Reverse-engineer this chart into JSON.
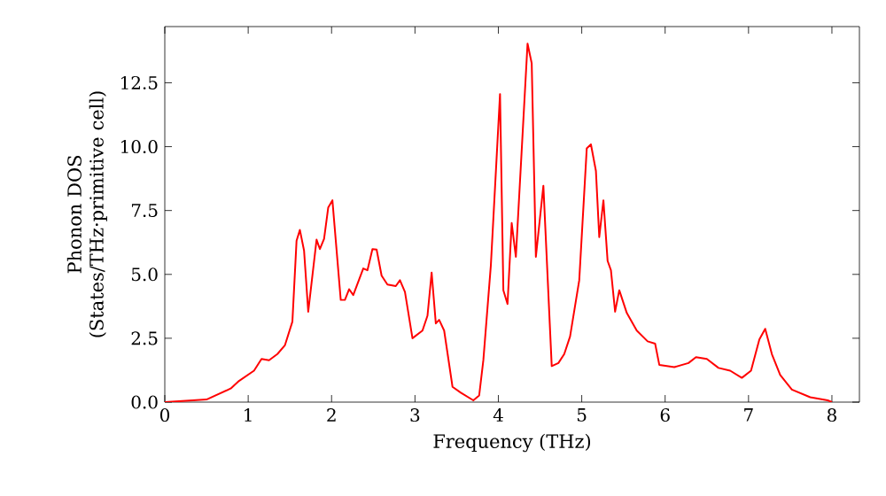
{
  "chart_data": {
    "type": "line",
    "xlabel": "Frequency (THz)",
    "ylabel": "Phonon DOS (States/THz·primitive cell)",
    "xlim": [
      0,
      8.33
    ],
    "ylim": [
      0,
      14.7
    ],
    "xticks": [
      0,
      1,
      2,
      3,
      4,
      5,
      6,
      7,
      8
    ],
    "yticks": [
      {
        "value": 0,
        "label": "0.0"
      },
      {
        "value": 2.5,
        "label": "2.5"
      },
      {
        "value": 5,
        "label": "5.0"
      },
      {
        "value": 7.5,
        "label": "7.5"
      },
      {
        "value": 10,
        "label": "10.0"
      },
      {
        "value": 12.5,
        "label": "12.5"
      }
    ],
    "grid": false,
    "marker": "none",
    "line_style": "solid",
    "series": [
      {
        "color": "#ff0000",
        "x": [
          0,
          0.5,
          0.79,
          0.89,
          1.07,
          1.16,
          1.25,
          1.35,
          1.44,
          1.53,
          1.58,
          1.62,
          1.67,
          1.72,
          1.82,
          1.86,
          1.91,
          1.96,
          2.01,
          2.11,
          2.16,
          2.21,
          2.26,
          2.38,
          2.43,
          2.49,
          2.54,
          2.6,
          2.67,
          2.77,
          2.82,
          2.88,
          2.97,
          3.09,
          3.15,
          3.2,
          3.25,
          3.29,
          3.35,
          3.45,
          3.55,
          3.7,
          3.77,
          3.82,
          3.91,
          4.02,
          4.06,
          4.11,
          4.16,
          4.21,
          4.35,
          4.4,
          4.45,
          4.54,
          4.64,
          4.72,
          4.79,
          4.86,
          4.97,
          5.06,
          5.11,
          5.17,
          5.21,
          5.26,
          5.31,
          5.35,
          5.4,
          5.45,
          5.54,
          5.66,
          5.79,
          5.88,
          5.93,
          6.11,
          6.28,
          6.37,
          6.5,
          6.64,
          6.78,
          6.92,
          7.03,
          7.13,
          7.2,
          7.28,
          7.38,
          7.52,
          7.74,
          7.95,
          8.0
        ],
        "values": [
          0,
          0.1,
          0.53,
          0.83,
          1.23,
          1.69,
          1.64,
          1.88,
          2.22,
          3.15,
          6.32,
          6.74,
          5.93,
          3.54,
          6.36,
          5.99,
          6.39,
          7.62,
          7.9,
          4.0,
          4.0,
          4.42,
          4.19,
          5.23,
          5.16,
          5.99,
          5.97,
          4.95,
          4.6,
          4.54,
          4.77,
          4.31,
          2.5,
          2.8,
          3.38,
          5.07,
          3.08,
          3.22,
          2.8,
          0.6,
          0.37,
          0.07,
          0.26,
          1.64,
          5.35,
          12.06,
          4.38,
          3.84,
          7.01,
          5.69,
          14.03,
          13.26,
          5.69,
          8.47,
          1.41,
          1.53,
          1.88,
          2.57,
          4.77,
          9.93,
          10.09,
          9.05,
          6.46,
          7.9,
          5.53,
          5.16,
          3.54,
          4.38,
          3.49,
          2.8,
          2.38,
          2.29,
          1.46,
          1.37,
          1.53,
          1.76,
          1.69,
          1.34,
          1.23,
          0.95,
          1.23,
          2.45,
          2.87,
          1.88,
          1.06,
          0.49,
          0.19,
          0.07,
          0
        ]
      }
    ]
  }
}
